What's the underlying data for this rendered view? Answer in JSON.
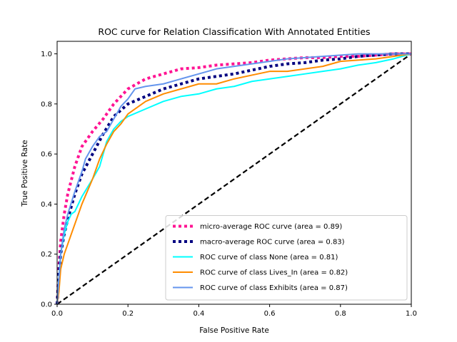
{
  "chart_data": {
    "type": "line",
    "title": "ROC curve for Relation Classification With Annotated Entities",
    "xlabel": "False Positive Rate",
    "ylabel": "True Positive Rate",
    "xlim": [
      0.0,
      1.0
    ],
    "ylim": [
      0.0,
      1.05
    ],
    "xticks": [
      "0.0",
      "0.2",
      "0.4",
      "0.6",
      "0.8",
      "1.0"
    ],
    "yticks": [
      "0.0",
      "0.2",
      "0.4",
      "0.6",
      "0.8",
      "1.0"
    ],
    "grid": false,
    "legend_position": "lower-right",
    "series": [
      {
        "name": "micro-average ROC curve (area = 0.89)",
        "color": "#ff1493",
        "style": "dotted",
        "x": [
          0.0,
          0.005,
          0.01,
          0.02,
          0.03,
          0.05,
          0.07,
          0.1,
          0.13,
          0.16,
          0.2,
          0.25,
          0.3,
          0.35,
          0.4,
          0.45,
          0.5,
          0.55,
          0.6,
          0.65,
          0.7,
          0.75,
          0.8,
          0.85,
          0.9,
          0.95,
          1.0
        ],
        "y": [
          0.0,
          0.15,
          0.25,
          0.36,
          0.44,
          0.55,
          0.63,
          0.69,
          0.74,
          0.8,
          0.86,
          0.9,
          0.92,
          0.94,
          0.945,
          0.955,
          0.96,
          0.965,
          0.975,
          0.98,
          0.985,
          0.985,
          0.99,
          0.99,
          0.995,
          1.0,
          1.0
        ]
      },
      {
        "name": "macro-average ROC curve (area = 0.83)",
        "color": "#000080",
        "style": "dotted",
        "x": [
          0.0,
          0.005,
          0.01,
          0.02,
          0.03,
          0.05,
          0.07,
          0.1,
          0.13,
          0.16,
          0.2,
          0.25,
          0.3,
          0.35,
          0.4,
          0.45,
          0.5,
          0.55,
          0.6,
          0.65,
          0.7,
          0.75,
          0.8,
          0.85,
          0.9,
          0.95,
          1.0
        ],
        "y": [
          0.0,
          0.12,
          0.2,
          0.28,
          0.34,
          0.44,
          0.52,
          0.6,
          0.68,
          0.75,
          0.8,
          0.83,
          0.86,
          0.88,
          0.9,
          0.91,
          0.92,
          0.935,
          0.95,
          0.96,
          0.965,
          0.975,
          0.98,
          0.99,
          0.995,
          1.0,
          1.0
        ]
      },
      {
        "name": "ROC curve of class None (area = 0.81)",
        "color": "#00ffff",
        "style": "solid",
        "x": [
          0.0,
          0.005,
          0.01,
          0.02,
          0.03,
          0.04,
          0.05,
          0.07,
          0.1,
          0.12,
          0.14,
          0.16,
          0.18,
          0.2,
          0.25,
          0.3,
          0.35,
          0.4,
          0.45,
          0.5,
          0.55,
          0.6,
          0.65,
          0.7,
          0.75,
          0.8,
          0.85,
          0.9,
          0.95,
          1.0
        ],
        "y": [
          0.0,
          0.1,
          0.2,
          0.28,
          0.33,
          0.36,
          0.37,
          0.43,
          0.5,
          0.55,
          0.65,
          0.7,
          0.73,
          0.75,
          0.78,
          0.81,
          0.83,
          0.84,
          0.86,
          0.87,
          0.89,
          0.9,
          0.91,
          0.92,
          0.93,
          0.94,
          0.955,
          0.965,
          0.98,
          1.0
        ]
      },
      {
        "name": "ROC curve of class Lives_In (area = 0.82)",
        "color": "#ff8c00",
        "style": "solid",
        "x": [
          0.0,
          0.005,
          0.01,
          0.02,
          0.03,
          0.04,
          0.05,
          0.07,
          0.1,
          0.12,
          0.14,
          0.16,
          0.18,
          0.2,
          0.25,
          0.3,
          0.35,
          0.4,
          0.45,
          0.5,
          0.55,
          0.6,
          0.65,
          0.7,
          0.75,
          0.8,
          0.85,
          0.9,
          0.95,
          1.0
        ],
        "y": [
          0.0,
          0.05,
          0.14,
          0.2,
          0.24,
          0.28,
          0.32,
          0.4,
          0.5,
          0.58,
          0.64,
          0.69,
          0.72,
          0.76,
          0.81,
          0.84,
          0.86,
          0.88,
          0.88,
          0.9,
          0.915,
          0.93,
          0.93,
          0.94,
          0.95,
          0.97,
          0.975,
          0.98,
          0.99,
          1.0
        ]
      },
      {
        "name": "ROC curve of class Exhibits (area = 0.87)",
        "color": "#6495ed",
        "style": "solid",
        "x": [
          0.0,
          0.005,
          0.01,
          0.02,
          0.03,
          0.05,
          0.07,
          0.08,
          0.1,
          0.12,
          0.14,
          0.16,
          0.18,
          0.2,
          0.22,
          0.25,
          0.3,
          0.35,
          0.4,
          0.45,
          0.5,
          0.55,
          0.6,
          0.65,
          0.7,
          0.75,
          0.8,
          0.85,
          0.9,
          0.95,
          1.0
        ],
        "y": [
          0.0,
          0.1,
          0.2,
          0.3,
          0.36,
          0.45,
          0.53,
          0.58,
          0.63,
          0.67,
          0.69,
          0.74,
          0.79,
          0.82,
          0.86,
          0.87,
          0.88,
          0.9,
          0.92,
          0.94,
          0.95,
          0.96,
          0.97,
          0.98,
          0.985,
          0.99,
          0.995,
          1.0,
          1.0,
          1.0,
          1.0
        ]
      },
      {
        "name": "",
        "color": "#000000",
        "style": "dashed",
        "x": [
          0.0,
          1.0
        ],
        "y": [
          0.0,
          1.0
        ]
      }
    ]
  }
}
